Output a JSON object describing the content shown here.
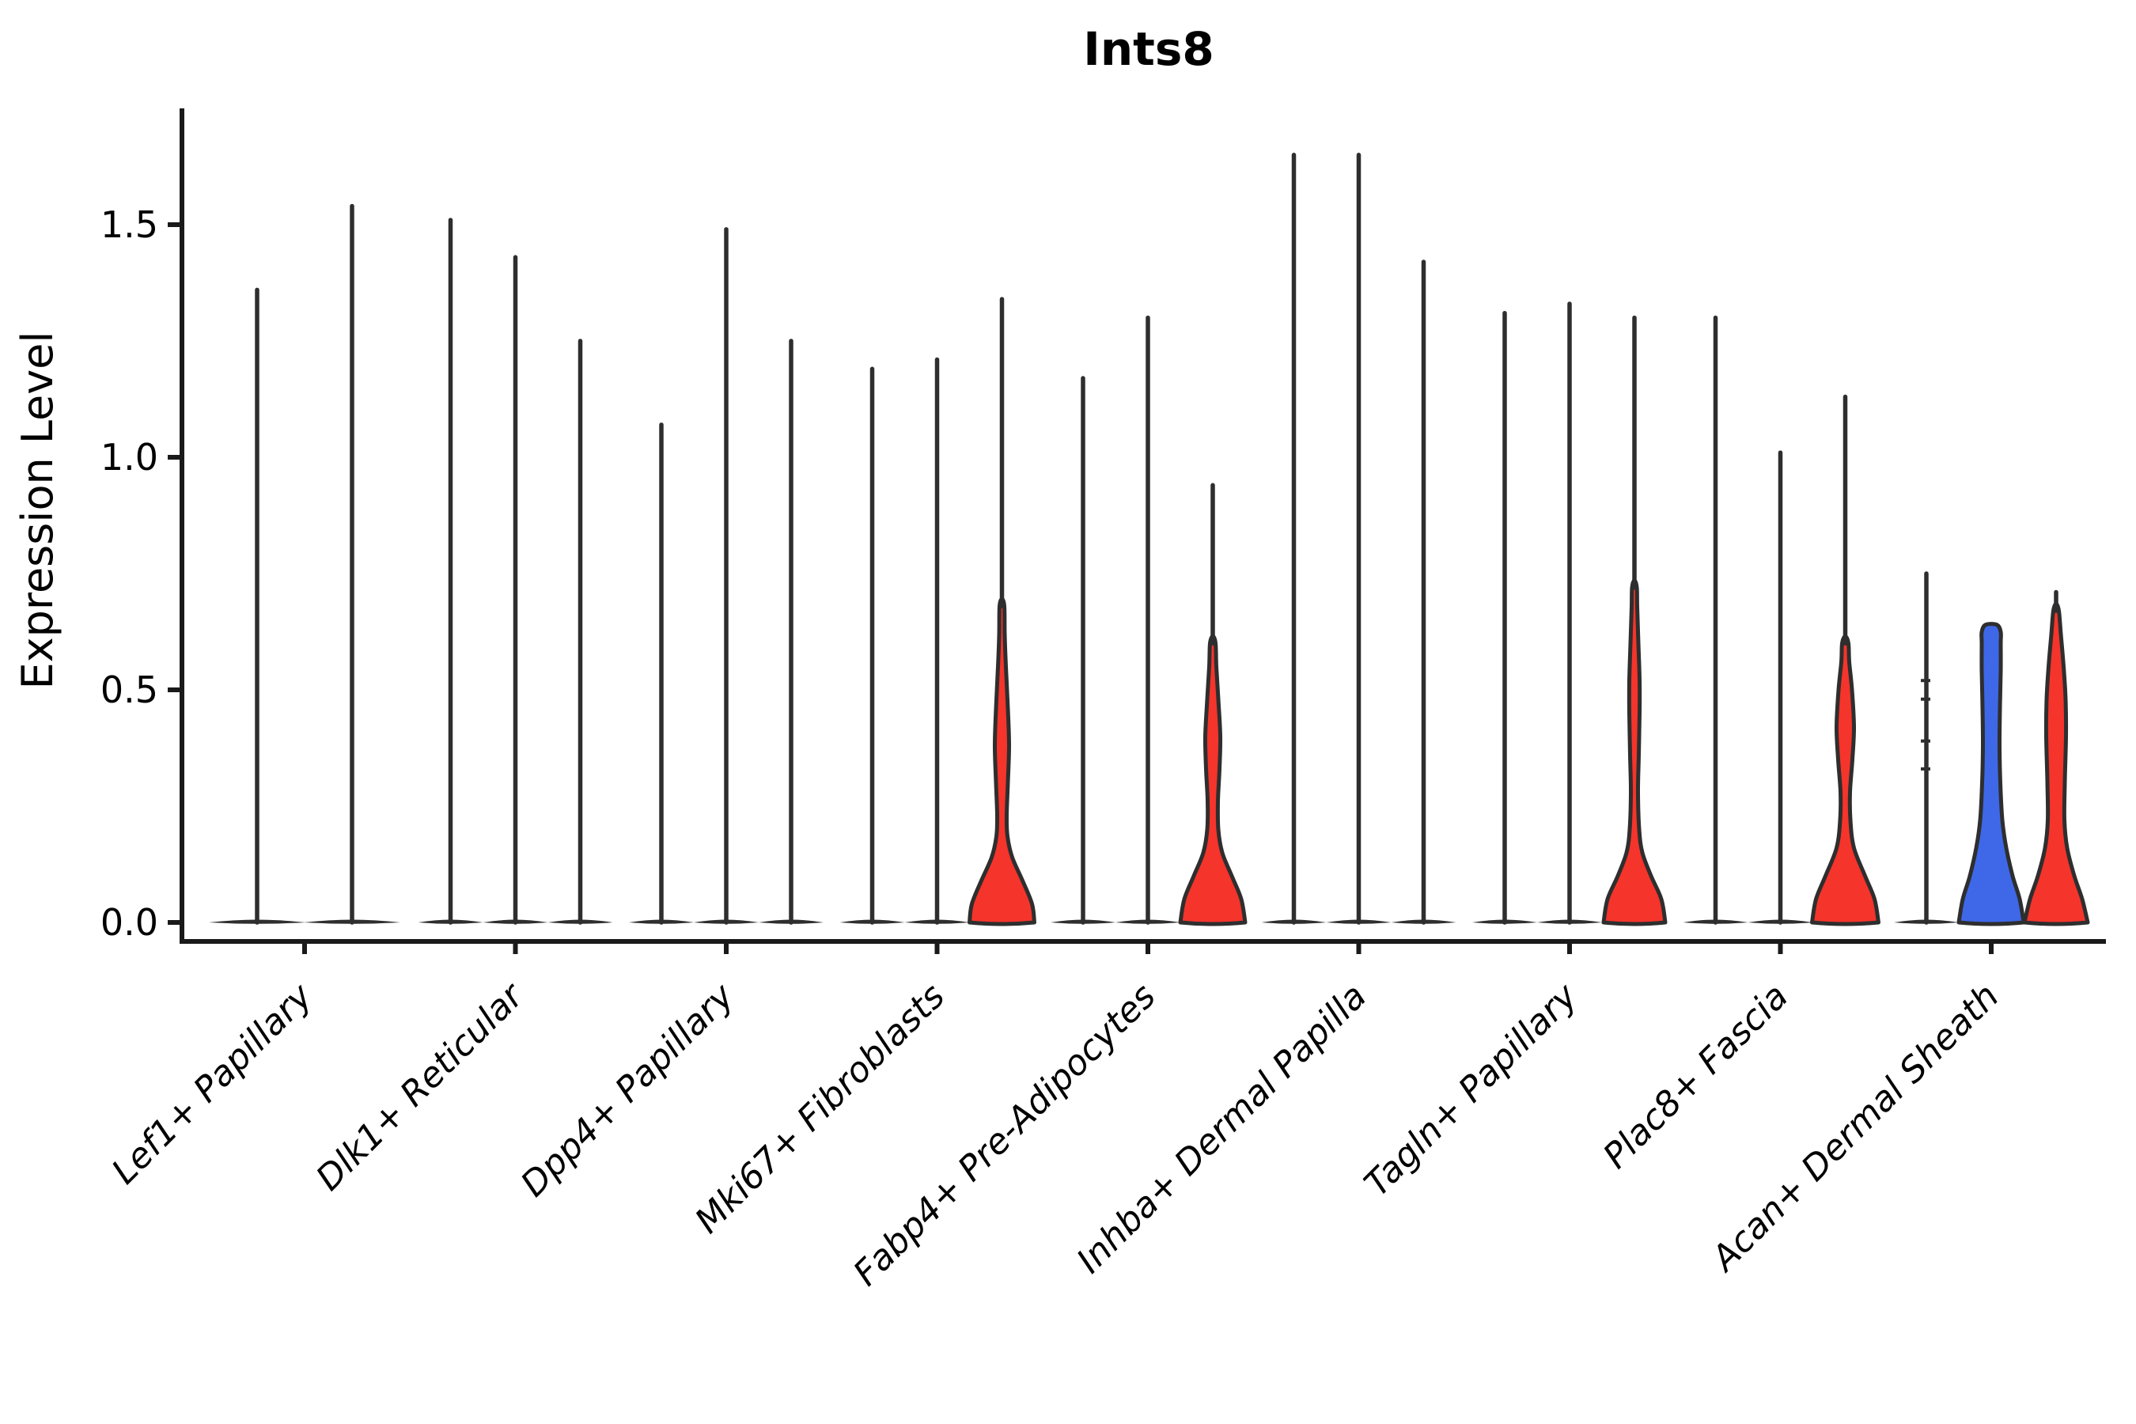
{
  "chart_data": {
    "type": "violin",
    "title": "Ints8",
    "ylabel": "Expression Level",
    "ytick_labels": [
      "0.0",
      "0.5",
      "1.0",
      "1.5"
    ],
    "yticks": [
      0.0,
      0.5,
      1.0,
      1.5
    ],
    "ylim": [
      -0.09,
      1.75
    ],
    "grid": false,
    "legend": "none",
    "colors": {
      "outline": "#2e2e2e",
      "red": "#f5342b",
      "blue": "#3e68e8",
      "axis": "#1a1a1a",
      "text": "#000000",
      "background": "#ffffff"
    },
    "groups": [
      {
        "label": "Lef1+ Papillary",
        "violins": [
          {
            "kind": "spike",
            "peak": 1.36
          },
          {
            "kind": "spike",
            "peak": 1.54
          }
        ]
      },
      {
        "label": "Dlk1+ Reticular",
        "violins": [
          {
            "kind": "spike",
            "peak": 1.51
          },
          {
            "kind": "spike",
            "peak": 1.43
          },
          {
            "kind": "spike",
            "peak": 1.25
          }
        ]
      },
      {
        "label": "Dpp4+ Papillary",
        "violins": [
          {
            "kind": "spike",
            "peak": 1.07
          },
          {
            "kind": "spike",
            "peak": 1.49
          },
          {
            "kind": "spike",
            "peak": 1.25
          }
        ]
      },
      {
        "label": "Mki67+ Fibroblasts",
        "violins": [
          {
            "kind": "spike",
            "peak": 1.19
          },
          {
            "kind": "spike",
            "peak": 1.21
          },
          {
            "kind": "filled",
            "color": "red",
            "peak": 1.34,
            "profile": [
              [
                0,
                41
              ],
              [
                0.04,
                38
              ],
              [
                0.09,
                26
              ],
              [
                0.14,
                13
              ],
              [
                0.185,
                7
              ],
              [
                0.23,
                6
              ],
              [
                0.3,
                7.5
              ],
              [
                0.38,
                9
              ],
              [
                0.46,
                7.5
              ],
              [
                0.55,
                5
              ],
              [
                0.62,
                3.5
              ],
              [
                0.68,
                3
              ]
            ]
          }
        ]
      },
      {
        "label": "Fabp4+ Pre-Adipocytes",
        "violins": [
          {
            "kind": "spike",
            "peak": 1.17
          },
          {
            "kind": "spike",
            "peak": 1.3
          },
          {
            "kind": "filled",
            "color": "red",
            "peak": 0.94,
            "profile": [
              [
                0,
                41
              ],
              [
                0.05,
                36
              ],
              [
                0.1,
                24
              ],
              [
                0.15,
                12
              ],
              [
                0.2,
                7
              ],
              [
                0.26,
                6.5
              ],
              [
                0.33,
                8.5
              ],
              [
                0.4,
                9.5
              ],
              [
                0.48,
                7
              ],
              [
                0.55,
                4.5
              ],
              [
                0.6,
                3.5
              ]
            ]
          }
        ]
      },
      {
        "label": "Inhba+ Dermal Papilla",
        "violins": [
          {
            "kind": "spike",
            "peak": 1.65
          },
          {
            "kind": "spike",
            "peak": 1.65
          },
          {
            "kind": "spike",
            "peak": 1.42
          }
        ]
      },
      {
        "label": "Tagln+ Papillary",
        "violins": [
          {
            "kind": "spike",
            "peak": 1.31
          },
          {
            "kind": "spike",
            "peak": 1.33
          },
          {
            "kind": "filled",
            "color": "red",
            "peak": 1.3,
            "profile": [
              [
                0,
                39
              ],
              [
                0.05,
                34
              ],
              [
                0.1,
                21
              ],
              [
                0.15,
                10
              ],
              [
                0.2,
                6
              ],
              [
                0.28,
                4.5
              ],
              [
                0.36,
                5.5
              ],
              [
                0.45,
                6.5
              ],
              [
                0.52,
                6.5
              ],
              [
                0.6,
                5
              ],
              [
                0.68,
                3.5
              ],
              [
                0.72,
                3
              ]
            ]
          }
        ]
      },
      {
        "label": "Plac8+ Fascia",
        "violins": [
          {
            "kind": "spike",
            "peak": 1.3
          },
          {
            "kind": "spike",
            "peak": 1.01
          },
          {
            "kind": "filled",
            "color": "red",
            "peak": 1.13,
            "profile": [
              [
                0,
                42
              ],
              [
                0.05,
                37
              ],
              [
                0.1,
                25
              ],
              [
                0.16,
                11
              ],
              [
                0.22,
                6.5
              ],
              [
                0.28,
                6
              ],
              [
                0.35,
                9
              ],
              [
                0.42,
                11
              ],
              [
                0.5,
                8.5
              ],
              [
                0.56,
                5
              ],
              [
                0.6,
                4
              ]
            ]
          }
        ]
      },
      {
        "label": "Acan+ Dermal Sheath",
        "violins": [
          {
            "kind": "spike",
            "peak": 0.75,
            "stubs": [
              0.52,
              0.48,
              0.39,
              0.33
            ]
          },
          {
            "kind": "filled",
            "color": "blue",
            "peak": 0.64,
            "blunt": true,
            "profile": [
              [
                0,
                41
              ],
              [
                0.05,
                36
              ],
              [
                0.1,
                27
              ],
              [
                0.16,
                19
              ],
              [
                0.22,
                14
              ],
              [
                0.3,
                11.5
              ],
              [
                0.38,
                10.5
              ],
              [
                0.46,
                11
              ],
              [
                0.54,
                12
              ],
              [
                0.6,
                12
              ]
            ]
          },
          {
            "kind": "filled",
            "color": "red",
            "peak": 0.71,
            "profile": [
              [
                0,
                40
              ],
              [
                0.05,
                33
              ],
              [
                0.1,
                23
              ],
              [
                0.16,
                14
              ],
              [
                0.22,
                10.5
              ],
              [
                0.3,
                11
              ],
              [
                0.4,
                12.5
              ],
              [
                0.48,
                12
              ],
              [
                0.55,
                9.5
              ],
              [
                0.62,
                6
              ],
              [
                0.67,
                3.5
              ]
            ]
          }
        ]
      }
    ]
  }
}
